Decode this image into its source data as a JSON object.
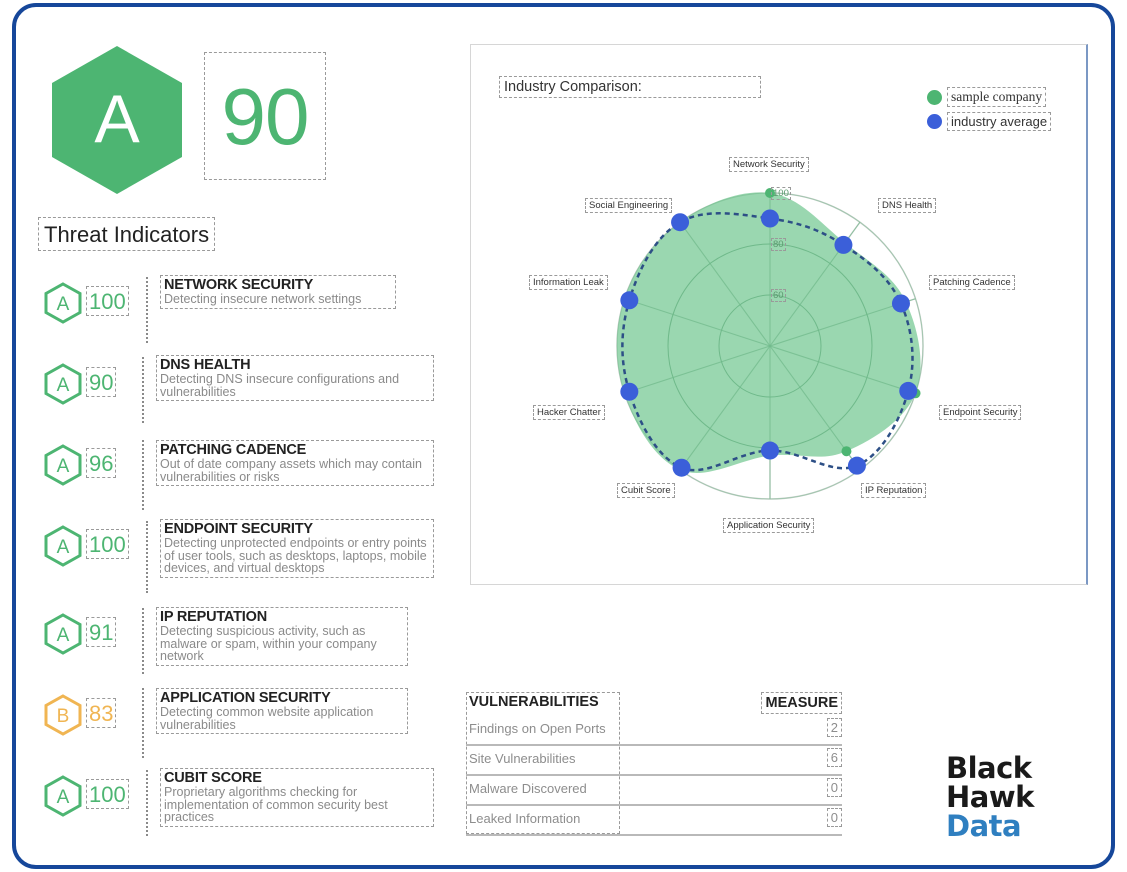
{
  "overall": {
    "grade": "A",
    "score": "90",
    "grade_color": "#4db572"
  },
  "threat_indicators": {
    "title": "Threat Indicators",
    "items": [
      {
        "grade": "A",
        "score": "100",
        "title": "NETWORK SECURITY",
        "description": "Detecting insecure network settings",
        "color": "#4db572"
      },
      {
        "grade": "A",
        "score": "90",
        "title": "DNS HEALTH",
        "description": "Detecting DNS insecure configurations and vulnerabilities",
        "color": "#4db572"
      },
      {
        "grade": "A",
        "score": "96",
        "title": "PATCHING CADENCE",
        "description": "Out of date company assets which may contain vulnerabilities or risks",
        "color": "#4db572"
      },
      {
        "grade": "A",
        "score": "100",
        "title": "ENDPOINT SECURITY",
        "description": "Detecting unprotected endpoints or entry points of user tools, such as desktops, laptops, mobile devices, and virtual desktops",
        "color": "#4db572"
      },
      {
        "grade": "A",
        "score": "91",
        "title": "IP REPUTATION",
        "description": "Detecting suspicious activity, such as malware or spam, within your company network",
        "color": "#4db572"
      },
      {
        "grade": "B",
        "score": "83",
        "title": "APPLICATION SECURITY",
        "description": "Detecting common website application vulnerabilities",
        "color": "#f0b552"
      },
      {
        "grade": "A",
        "score": "100",
        "title": "CUBIT SCORE",
        "description": "Proprietary algorithms checking for implementation of common security best practices",
        "color": "#4db572"
      }
    ]
  },
  "industry_comparison": {
    "title": "Industry Comparison:",
    "legend": [
      {
        "label": "sample company",
        "color": "#4db572"
      },
      {
        "label": "industry average",
        "color": "#3b5fd9"
      }
    ],
    "ring_labels": [
      "100",
      "80",
      "60"
    ]
  },
  "chart_data": {
    "type": "radar",
    "title": "Industry Comparison:",
    "categories": [
      "Network Security",
      "DNS Health",
      "Patching Cadence",
      "Endpoint Security",
      "IP Reputation",
      "Application Security",
      "Cubit Score",
      "Hacker Chatter",
      "Information Leak",
      "Social Engineering"
    ],
    "series": [
      {
        "name": "sample company",
        "color": "#4db572",
        "style": "filled area",
        "values": [
          100,
          90,
          96,
          100,
          91,
          83,
          100,
          100,
          100,
          100
        ]
      },
      {
        "name": "industry average",
        "color": "#3b5fd9",
        "style": "dashed line with markers",
        "values": [
          90,
          89,
          94,
          97,
          98,
          81,
          99,
          98,
          98,
          100
        ]
      }
    ],
    "radial_ticks": [
      60,
      80,
      100
    ],
    "rlim": [
      40,
      100
    ],
    "legend_position": "top-right",
    "grid": true
  },
  "vulnerabilities": {
    "header_left": "VULNERABILITIES",
    "header_right": "MEASURE",
    "rows": [
      {
        "label": "Findings on Open Ports",
        "value": "2"
      },
      {
        "label": "Site Vulnerabilities",
        "value": "6"
      },
      {
        "label": "Malware Discovered",
        "value": "0"
      },
      {
        "label": "Leaked Information",
        "value": "0"
      }
    ]
  },
  "logo": {
    "line1": "Black",
    "line2": "Hawk",
    "line3": "Data"
  }
}
